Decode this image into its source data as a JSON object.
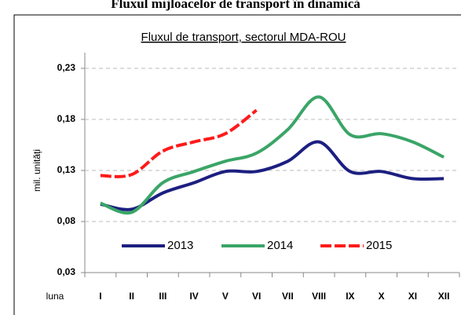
{
  "chart_data": {
    "type": "line",
    "title": "Fluxul mijloacelor de transport în dinamică",
    "subtitle": "Fluxul de transport, sectorul MDA-ROU",
    "y_label": "mil. unități",
    "x_label": "luna",
    "categories": [
      "I",
      "II",
      "III",
      "IV",
      "V",
      "VI",
      "VII",
      "VIII",
      "IX",
      "X",
      "XI",
      "XII"
    ],
    "series": [
      {
        "name": "2013",
        "color": "#1c1f80",
        "dash": false,
        "values": [
          0.097,
          0.092,
          0.108,
          0.118,
          0.129,
          0.129,
          0.139,
          0.158,
          0.129,
          0.129,
          0.122,
          0.122
        ]
      },
      {
        "name": "2014",
        "color": "#3aa567",
        "dash": false,
        "values": [
          0.098,
          0.089,
          0.118,
          0.129,
          0.139,
          0.147,
          0.17,
          0.202,
          0.165,
          0.166,
          0.158,
          0.143
        ]
      },
      {
        "name": "2015",
        "color": "#ff1a1a",
        "dash": true,
        "values": [
          0.125,
          0.126,
          0.149,
          0.158,
          0.166,
          0.189,
          null,
          null,
          null,
          null,
          null,
          null
        ]
      }
    ],
    "ylim": [
      0.03,
      0.23
    ],
    "yticks": [
      {
        "value": 0.03,
        "label": "0,03"
      },
      {
        "value": 0.08,
        "label": "0,08"
      },
      {
        "value": 0.13,
        "label": "0,13"
      },
      {
        "value": 0.18,
        "label": "0,18"
      },
      {
        "value": 0.23,
        "label": "0,23"
      }
    ],
    "grid": true,
    "legend": "bottom"
  }
}
